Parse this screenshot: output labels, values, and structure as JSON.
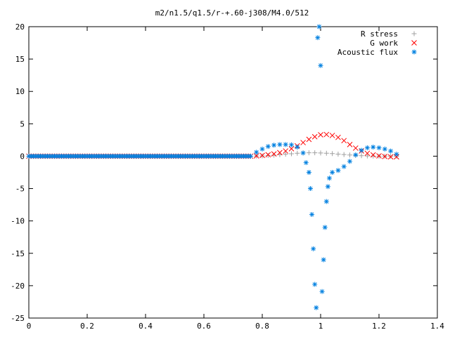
{
  "chart_data": {
    "type": "scatter",
    "title": "m2/n1.5/q1.5/r-+.60-j308/M4.0/512",
    "xlabel": "",
    "ylabel": "",
    "xlim": [
      0,
      1.4
    ],
    "ylim": [
      -25,
      20
    ],
    "xticks": [
      0,
      0.2,
      0.4,
      0.6,
      0.8,
      1,
      1.2,
      1.4
    ],
    "yticks": [
      -25,
      -20,
      -15,
      -10,
      -5,
      0,
      5,
      10,
      15,
      20
    ],
    "xtick_labels": [
      "0",
      "0.2",
      "0.4",
      "0.6",
      "0.8",
      "1",
      "1.2",
      "1.4"
    ],
    "ytick_labels": [
      "-25",
      "-20",
      "-15",
      "-10",
      "-5",
      "0",
      "5",
      "10",
      "15",
      "20"
    ],
    "grid": false,
    "legend_position": "top-right",
    "series": [
      {
        "name": "R stress",
        "marker": "plus",
        "color": "#a0a0a0",
        "x": [
          0.76,
          0.78,
          0.8,
          0.82,
          0.84,
          0.86,
          0.88,
          0.9,
          0.92,
          0.94,
          0.96,
          0.98,
          1.0,
          1.02,
          1.04,
          1.06,
          1.08,
          1.1,
          1.12,
          1.14,
          1.16,
          1.18,
          1.2,
          1.22,
          1.24,
          1.26
        ],
        "y": [
          0.0,
          0.02,
          0.05,
          0.1,
          0.15,
          0.22,
          0.3,
          0.38,
          0.45,
          0.5,
          0.52,
          0.52,
          0.5,
          0.45,
          0.4,
          0.32,
          0.25,
          0.18,
          0.12,
          0.07,
          0.04,
          0.02,
          0.01,
          0.0,
          0.0,
          0.0
        ]
      },
      {
        "name": "G work",
        "marker": "cross",
        "color": "#ff0000",
        "x": [
          0.76,
          0.78,
          0.8,
          0.82,
          0.84,
          0.86,
          0.88,
          0.9,
          0.92,
          0.94,
          0.96,
          0.98,
          1.0,
          1.02,
          1.04,
          1.06,
          1.08,
          1.1,
          1.12,
          1.14,
          1.16,
          1.18,
          1.2,
          1.22,
          1.24,
          1.26
        ],
        "y": [
          0.0,
          0.05,
          0.12,
          0.22,
          0.35,
          0.55,
          0.8,
          1.15,
          1.6,
          2.1,
          2.6,
          3.0,
          3.3,
          3.35,
          3.2,
          2.9,
          2.4,
          1.8,
          1.25,
          0.8,
          0.45,
          0.2,
          0.05,
          -0.05,
          -0.1,
          -0.1
        ]
      },
      {
        "name": "Acoustic flux",
        "marker": "star",
        "color": "#0080e0",
        "x": [
          0.76,
          0.78,
          0.8,
          0.82,
          0.84,
          0.86,
          0.88,
          0.9,
          0.92,
          0.94,
          0.95,
          0.96,
          0.965,
          0.97,
          0.975,
          0.98,
          0.985,
          0.99,
          0.995,
          1.0,
          1.005,
          1.01,
          1.015,
          1.02,
          1.025,
          1.03,
          1.04,
          1.06,
          1.08,
          1.1,
          1.12,
          1.14,
          1.16,
          1.18,
          1.2,
          1.22,
          1.24,
          1.26
        ],
        "y": [
          0.0,
          0.6,
          1.1,
          1.5,
          1.7,
          1.8,
          1.8,
          1.75,
          1.4,
          0.5,
          -1.0,
          -2.5,
          -5.0,
          -9.0,
          -14.3,
          -19.8,
          -23.4,
          18.3,
          20.0,
          14.0,
          -20.9,
          -16.0,
          -11.0,
          -7.0,
          -4.7,
          -3.4,
          -2.5,
          -2.2,
          -1.6,
          -0.8,
          0.2,
          0.9,
          1.3,
          1.4,
          1.3,
          1.1,
          0.8,
          0.3
        ]
      }
    ]
  }
}
